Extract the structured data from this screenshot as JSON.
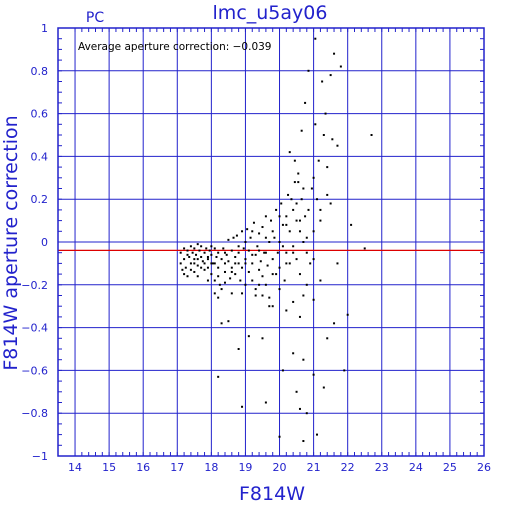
{
  "chart_data": {
    "type": "scatter",
    "title": "lmc_u5ay06",
    "corner_label": "PC",
    "annotation": "Average aperture correction: −0.039",
    "xlabel": "F814W",
    "ylabel": "F814W aperture correction",
    "xlim": [
      13.5,
      26
    ],
    "ylim": [
      -1,
      1
    ],
    "x_ticks": [
      14,
      15,
      16,
      17,
      18,
      19,
      20,
      21,
      22,
      23,
      24,
      25,
      26
    ],
    "y_ticks": [
      -1,
      -0.8,
      -0.6,
      -0.4,
      -0.2,
      0,
      0.2,
      0.4,
      0.6,
      0.8,
      1
    ],
    "x_tick_labels": [
      "14",
      "15",
      "16",
      "17",
      "18",
      "19",
      "20",
      "21",
      "22",
      "23",
      "24",
      "25",
      "26"
    ],
    "y_tick_labels": [
      "−1",
      "−0.8",
      "−0.6",
      "−0.4",
      "−0.2",
      "0",
      "0.2",
      "0.4",
      "0.6",
      "0.8",
      "1"
    ],
    "grid": true,
    "average_line": {
      "y": -0.039,
      "color": "#dd0000"
    },
    "colors": {
      "axis": "#2222cc",
      "grid": "#2222cc",
      "points": "#000000",
      "average_line": "#dd0000"
    },
    "points": [
      [
        17.1,
        -0.05
      ],
      [
        17.1,
        -0.1
      ],
      [
        17.15,
        -0.13
      ],
      [
        17.2,
        -0.03
      ],
      [
        17.2,
        -0.08
      ],
      [
        17.25,
        -0.12
      ],
      [
        17.3,
        -0.04
      ],
      [
        17.3,
        -0.16
      ],
      [
        17.35,
        -0.07
      ],
      [
        17.4,
        -0.02
      ],
      [
        17.4,
        -0.1
      ],
      [
        17.45,
        -0.05
      ],
      [
        17.5,
        -0.03
      ],
      [
        17.5,
        -0.08
      ],
      [
        17.5,
        -0.14
      ],
      [
        17.55,
        -0.06
      ],
      [
        17.6,
        -0.01
      ],
      [
        17.6,
        -0.11
      ],
      [
        17.65,
        -0.04
      ],
      [
        17.7,
        -0.07
      ],
      [
        17.7,
        -0.02
      ],
      [
        17.75,
        -0.09
      ],
      [
        17.8,
        -0.05
      ],
      [
        17.8,
        -0.13
      ],
      [
        17.85,
        -0.03
      ],
      [
        17.9,
        -0.08
      ],
      [
        17.9,
        -0.12
      ],
      [
        17.95,
        -0.04
      ],
      [
        18.0,
        -0.06
      ],
      [
        18.0,
        -0.02
      ],
      [
        18.0,
        -0.15
      ],
      [
        18.05,
        -0.1
      ],
      [
        18.1,
        -0.03
      ],
      [
        18.1,
        -0.18
      ],
      [
        18.15,
        -0.07
      ],
      [
        18.2,
        -0.05
      ],
      [
        18.2,
        -0.12
      ],
      [
        18.25,
        -0.2
      ],
      [
        18.3,
        -0.22
      ],
      [
        18.3,
        -0.08
      ],
      [
        18.35,
        -0.03
      ],
      [
        18.4,
        -0.1
      ],
      [
        18.4,
        -0.14
      ],
      [
        18.45,
        -0.06
      ],
      [
        18.5,
        0.01
      ],
      [
        18.5,
        -0.09
      ],
      [
        18.55,
        -0.17
      ],
      [
        18.6,
        -0.04
      ],
      [
        18.6,
        -0.12
      ],
      [
        18.65,
        0.02
      ],
      [
        18.7,
        -0.07
      ],
      [
        18.7,
        -0.15
      ],
      [
        18.75,
        0.03
      ],
      [
        18.8,
        -0.1
      ],
      [
        18.8,
        -0.05
      ],
      [
        18.85,
        -0.18
      ],
      [
        18.9,
        0.05
      ],
      [
        18.9,
        -0.12
      ],
      [
        18.95,
        -0.03
      ],
      [
        19.0,
        -0.08
      ],
      [
        19.0,
        -0.2
      ],
      [
        19.05,
        0.06
      ],
      [
        19.1,
        -0.14
      ],
      [
        19.1,
        -0.04
      ],
      [
        19.15,
        0.02
      ],
      [
        19.2,
        -0.1
      ],
      [
        19.2,
        -0.18
      ],
      [
        19.25,
        0.09
      ],
      [
        19.3,
        -0.06
      ],
      [
        19.3,
        -0.22
      ],
      [
        19.35,
        -0.02
      ],
      [
        19.4,
        -0.13
      ],
      [
        19.4,
        0.04
      ],
      [
        19.45,
        -0.09
      ],
      [
        19.5,
        -0.16
      ],
      [
        19.5,
        0.07
      ],
      [
        19.55,
        -0.05
      ],
      [
        19.6,
        -0.2
      ],
      [
        19.6,
        0.12
      ],
      [
        19.65,
        -0.11
      ],
      [
        19.7,
        0.0
      ],
      [
        19.7,
        -0.26
      ],
      [
        19.75,
        0.1
      ],
      [
        19.8,
        -0.08
      ],
      [
        19.8,
        -0.3
      ],
      [
        19.85,
        0.02
      ],
      [
        19.9,
        -0.15
      ],
      [
        19.9,
        0.15
      ],
      [
        19.95,
        -0.05
      ],
      [
        20.0,
        0.0
      ],
      [
        20.0,
        -0.12
      ],
      [
        20.05,
        0.18
      ],
      [
        20.1,
        -0.02
      ],
      [
        20.1,
        0.08
      ],
      [
        20.15,
        -0.18
      ],
      [
        20.2,
        0.12
      ],
      [
        20.2,
        -0.05
      ],
      [
        20.25,
        0.22
      ],
      [
        20.3,
        0.05
      ],
      [
        20.3,
        -0.1
      ],
      [
        20.35,
        0.2
      ],
      [
        20.4,
        -0.02
      ],
      [
        20.4,
        0.15
      ],
      [
        20.45,
        0.28
      ],
      [
        20.5,
        0.1
      ],
      [
        20.5,
        -0.08
      ],
      [
        20.55,
        0.32
      ],
      [
        20.6,
        0.05
      ],
      [
        20.6,
        -0.15
      ],
      [
        20.65,
        0.2
      ],
      [
        20.7,
        0.0
      ],
      [
        20.7,
        -0.25
      ],
      [
        20.75,
        0.12
      ],
      [
        20.8,
        -0.05
      ],
      [
        20.85,
        0.15
      ],
      [
        20.9,
        -0.1
      ],
      [
        20.95,
        0.25
      ],
      [
        21.0,
        0.3
      ],
      [
        21.0,
        0.05
      ],
      [
        21.05,
        0.55
      ],
      [
        21.1,
        0.2
      ],
      [
        21.15,
        0.38
      ],
      [
        21.2,
        0.1
      ],
      [
        21.3,
        0.5
      ],
      [
        21.35,
        0.6
      ],
      [
        21.4,
        0.35
      ],
      [
        21.5,
        0.78
      ],
      [
        21.6,
        0.88
      ],
      [
        21.7,
        0.45
      ],
      [
        21.8,
        0.82
      ],
      [
        20.3,
        0.42
      ],
      [
        20.45,
        0.38
      ],
      [
        20.55,
        0.28
      ],
      [
        20.65,
        0.52
      ],
      [
        20.75,
        0.65
      ],
      [
        20.85,
        0.8
      ],
      [
        21.05,
        0.95
      ],
      [
        21.25,
        0.75
      ],
      [
        21.4,
        0.22
      ],
      [
        21.55,
        0.48
      ],
      [
        17.6,
        -0.16
      ],
      [
        17.9,
        -0.18
      ],
      [
        18.1,
        -0.24
      ],
      [
        18.2,
        -0.26
      ],
      [
        18.6,
        -0.24
      ],
      [
        18.9,
        -0.24
      ],
      [
        19.3,
        -0.25
      ],
      [
        19.5,
        -0.25
      ],
      [
        19.7,
        -0.3
      ],
      [
        20.2,
        -0.32
      ],
      [
        20.4,
        -0.28
      ],
      [
        20.6,
        -0.35
      ],
      [
        20.8,
        -0.2
      ],
      [
        21.0,
        -0.27
      ],
      [
        21.2,
        -0.18
      ],
      [
        18.3,
        -0.38
      ],
      [
        18.5,
        -0.37
      ],
      [
        18.8,
        -0.5
      ],
      [
        19.1,
        -0.44
      ],
      [
        19.5,
        -0.45
      ],
      [
        20.1,
        -0.6
      ],
      [
        20.4,
        -0.52
      ],
      [
        20.7,
        -0.55
      ],
      [
        21.0,
        -0.62
      ],
      [
        21.4,
        -0.45
      ],
      [
        21.6,
        -0.38
      ],
      [
        18.2,
        -0.63
      ],
      [
        18.9,
        -0.77
      ],
      [
        19.6,
        -0.75
      ],
      [
        20.0,
        -0.91
      ],
      [
        20.5,
        -0.7
      ],
      [
        20.6,
        -0.78
      ],
      [
        20.8,
        -0.8
      ],
      [
        21.3,
        -0.68
      ],
      [
        21.1,
        -0.9
      ],
      [
        20.7,
        -0.93
      ],
      [
        22.0,
        -0.34
      ],
      [
        22.1,
        0.08
      ],
      [
        22.5,
        -0.03
      ],
      [
        22.7,
        0.5
      ],
      [
        21.9,
        -0.6
      ],
      [
        21.7,
        -0.1
      ],
      [
        21.5,
        0.18
      ],
      [
        17.3,
        -0.06
      ],
      [
        17.5,
        -0.1
      ],
      [
        17.7,
        -0.12
      ],
      [
        17.9,
        -0.07
      ],
      [
        18.1,
        -0.1
      ],
      [
        18.4,
        -0.05
      ],
      [
        18.7,
        -0.1
      ],
      [
        19.0,
        -0.1
      ],
      [
        19.2,
        -0.06
      ],
      [
        19.4,
        -0.2
      ],
      [
        19.6,
        -0.05
      ],
      [
        19.8,
        -0.15
      ],
      [
        20.0,
        -0.22
      ],
      [
        20.2,
        -0.1
      ],
      [
        20.4,
        -0.05
      ],
      [
        20.6,
        0.1
      ],
      [
        20.8,
        0.02
      ],
      [
        21.0,
        -0.08
      ],
      [
        21.2,
        0.15
      ],
      [
        17.2,
        -0.15
      ],
      [
        17.4,
        -0.13
      ],
      [
        17.6,
        -0.08
      ],
      [
        17.8,
        -0.1
      ],
      [
        18.0,
        -0.1
      ],
      [
        18.2,
        -0.16
      ],
      [
        18.4,
        -0.19
      ],
      [
        18.6,
        -0.14
      ],
      [
        18.8,
        -0.02
      ],
      [
        19.0,
        0.0
      ],
      [
        19.2,
        0.05
      ],
      [
        19.4,
        -0.04
      ],
      [
        19.6,
        0.02
      ],
      [
        19.8,
        0.05
      ],
      [
        20.0,
        0.12
      ],
      [
        20.2,
        0.08
      ],
      [
        20.5,
        0.18
      ],
      [
        20.7,
        0.25
      ]
    ]
  }
}
